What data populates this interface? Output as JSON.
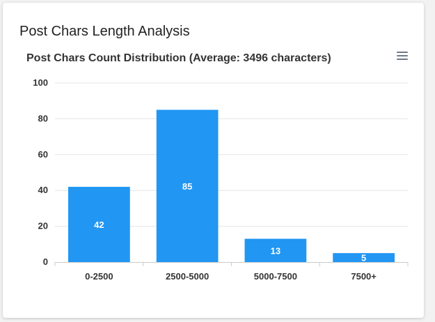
{
  "card": {
    "title": "Post Chars Length Analysis"
  },
  "chart_data": {
    "type": "bar",
    "title": "Post Chars Count Distribution (Average: 3496 characters)",
    "categories": [
      "0-2500",
      "2500-5000",
      "5000-7500",
      "7500+"
    ],
    "values": [
      42,
      85,
      13,
      5
    ],
    "xlabel": "",
    "ylabel": "",
    "ylim": [
      0,
      100
    ],
    "yticks": [
      0,
      20,
      40,
      60,
      80,
      100
    ],
    "grid": true,
    "legend": "none",
    "colors": {
      "bar": "#2196f3",
      "grid": "#e6e6e6",
      "axis": "#cccccc",
      "label": "#333333",
      "data_label": "#ffffff"
    }
  },
  "toolbar": {
    "menu_icon": "hamburger-menu-icon"
  }
}
